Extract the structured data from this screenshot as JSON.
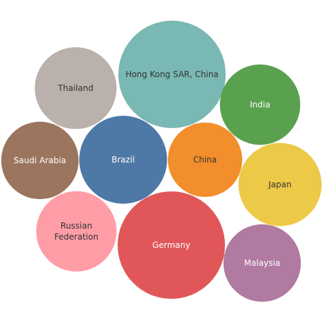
{
  "chart_data": {
    "type": "bubble",
    "title": "",
    "bubbles": [
      {
        "label": "Hong Kong SAR, China",
        "value": 1.0,
        "color": "#7ab8b3",
        "text_color": "#333333"
      },
      {
        "label": "Germany",
        "value": 1.0,
        "color": "#e15759",
        "text_color": "#ffffff"
      },
      {
        "label": "Brazil",
        "value": 0.67,
        "color": "#4e79a7",
        "text_color": "#ffffff"
      },
      {
        "label": "Japan",
        "value": 0.6,
        "color": "#edc948",
        "text_color": "#333333"
      },
      {
        "label": "Thailand",
        "value": 0.58,
        "color": "#bab0ac",
        "text_color": "#333333"
      },
      {
        "label": "Russian Federation",
        "value": 0.56,
        "color": "#ff9da7",
        "text_color": "#333333"
      },
      {
        "label": "India",
        "value": 0.56,
        "color": "#59a14f",
        "text_color": "#ffffff"
      },
      {
        "label": "Malaysia",
        "value": 0.52,
        "color": "#b07aa1",
        "text_color": "#ffffff"
      },
      {
        "label": "Saudi Arabia",
        "value": 0.52,
        "color": "#9c755f",
        "text_color": "#ffffff"
      },
      {
        "label": "China",
        "value": 0.48,
        "color": "#f28e2b",
        "text_color": "#333333"
      }
    ]
  }
}
